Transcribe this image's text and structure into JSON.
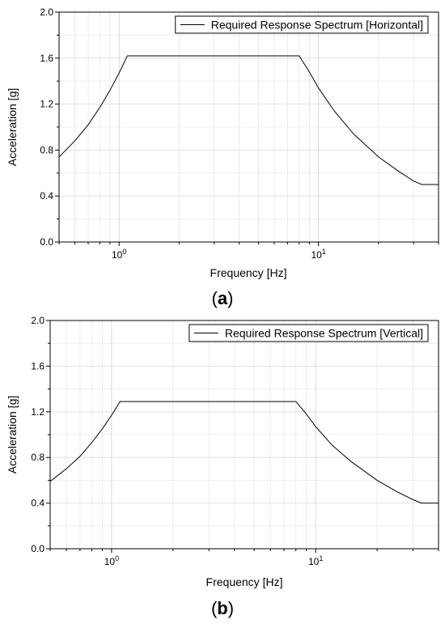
{
  "chart_data": [
    {
      "type": "line",
      "panel_label": "a",
      "xlabel": "Frequency [Hz]",
      "ylabel": "Acceleration [g]",
      "x_scale": "log",
      "xlim": [
        0.5,
        40
      ],
      "ylim": [
        0,
        2.0
      ],
      "x_ticks": [
        {
          "value": 1,
          "base": "10",
          "exp": "0"
        },
        {
          "value": 10,
          "base": "10",
          "exp": "1"
        }
      ],
      "y_ticks": [
        "0.0",
        "0.4",
        "0.8",
        "1.2",
        "1.6",
        "2.0"
      ],
      "grid": true,
      "legend_position": "top-right",
      "series": [
        {
          "name": "Required Response Spectrum [Horizontal]",
          "x": [
            0.5,
            0.6,
            0.7,
            0.8,
            0.9,
            1.0,
            1.1,
            8.0,
            9.0,
            10,
            12,
            15,
            20,
            25,
            30,
            33,
            40
          ],
          "y": [
            0.74,
            0.88,
            1.02,
            1.17,
            1.32,
            1.47,
            1.62,
            1.62,
            1.48,
            1.34,
            1.14,
            0.94,
            0.74,
            0.62,
            0.53,
            0.5,
            0.5
          ]
        }
      ]
    },
    {
      "type": "line",
      "panel_label": "b",
      "xlabel": "Frequency [Hz]",
      "ylabel": "Acceleration [g]",
      "x_scale": "log",
      "xlim": [
        0.5,
        40
      ],
      "ylim": [
        0,
        2.0
      ],
      "x_ticks": [
        {
          "value": 1,
          "base": "10",
          "exp": "0"
        },
        {
          "value": 10,
          "base": "10",
          "exp": "1"
        }
      ],
      "y_ticks": [
        "0.0",
        "0.4",
        "0.8",
        "1.2",
        "1.6",
        "2.0"
      ],
      "grid": true,
      "legend_position": "top-right",
      "series": [
        {
          "name": "Required Response Spectrum [Vertical]",
          "x": [
            0.5,
            0.6,
            0.7,
            0.8,
            0.9,
            1.0,
            1.1,
            8.0,
            9.0,
            10,
            12,
            15,
            20,
            25,
            30,
            33,
            40
          ],
          "y": [
            0.59,
            0.7,
            0.81,
            0.93,
            1.05,
            1.17,
            1.29,
            1.29,
            1.18,
            1.07,
            0.91,
            0.76,
            0.6,
            0.5,
            0.43,
            0.4,
            0.4
          ]
        }
      ]
    }
  ]
}
